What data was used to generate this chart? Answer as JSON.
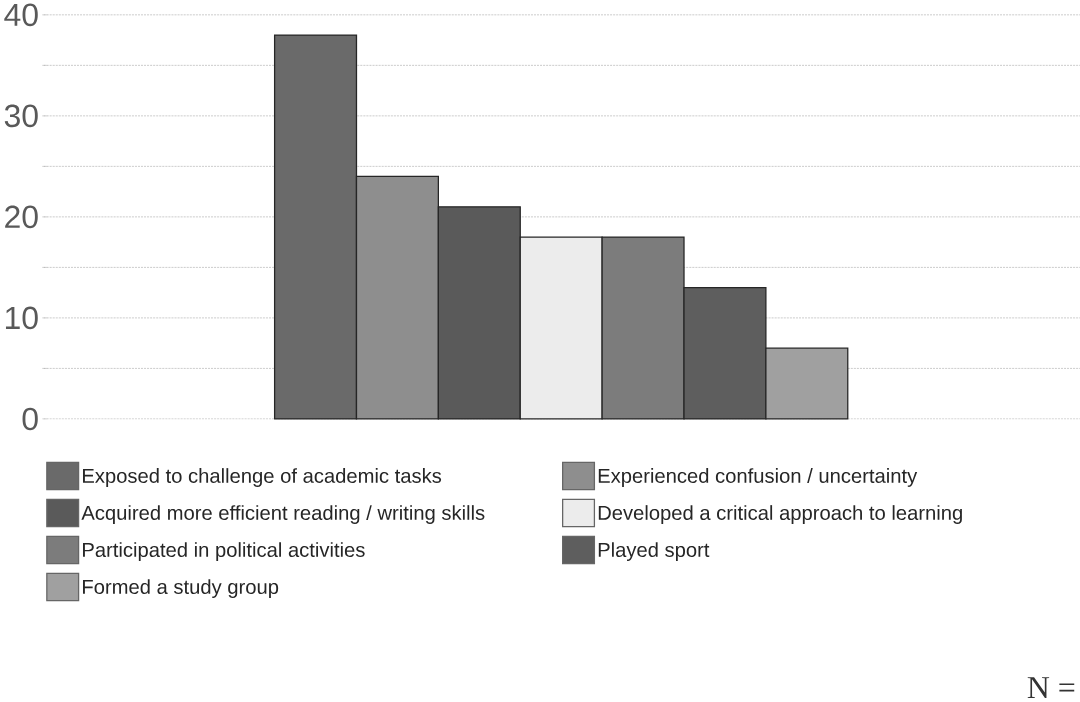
{
  "chart_data": {
    "type": "bar",
    "categories": [
      null
    ],
    "series": [
      {
        "name": "Exposed to challenge of academic tasks",
        "color": "#6a6a6a",
        "values": [
          38
        ]
      },
      {
        "name": "Experienced confusion / uncertainty",
        "color": "#8e8e8e",
        "values": [
          24
        ]
      },
      {
        "name": "Acquired more efficient reading / writing skills",
        "color": "#5a5a5a",
        "values": [
          21
        ]
      },
      {
        "name": "Developed a critical approach to learning",
        "color": "#ececec",
        "values": [
          18
        ]
      },
      {
        "name": "Participated in political activities",
        "color": "#7c7c7c",
        "values": [
          18
        ]
      },
      {
        "name": "Played sport",
        "color": "#5e5e5e",
        "values": [
          13
        ]
      },
      {
        "name": "Formed a study group",
        "color": "#a0a0a0",
        "values": [
          7
        ]
      }
    ],
    "ylim": [
      0,
      40
    ],
    "yticks": [
      0,
      {
        "value": 5,
        "label": null
      },
      10,
      {
        "value": 15,
        "label": null
      },
      20,
      {
        "value": 25,
        "label": null
      },
      30,
      {
        "value": 35,
        "label": null
      },
      40
    ],
    "grid": "y",
    "legend": "bottom",
    "annotations": [
      "N ="
    ]
  }
}
